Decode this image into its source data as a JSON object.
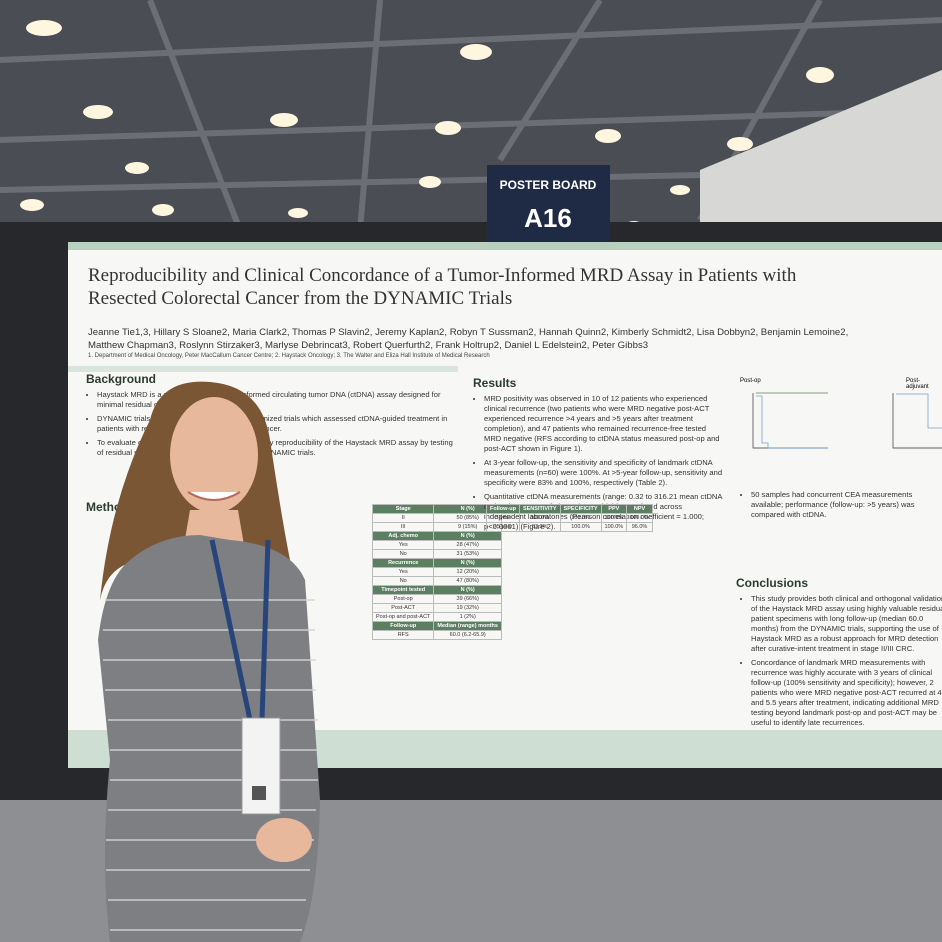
{
  "sign": {
    "label": "POSTER BOARD",
    "board": "A16"
  },
  "poster": {
    "title_lines": [
      "Reproducibility and Clinical Concordance of a Tumor-Informed MRD Assay in Patients with",
      "Resected Colorectal Cancer from the DYNAMIC Trials"
    ],
    "author_lines": [
      "Jeanne Tie1,3, Hillary S Sloane2, Maria Clark2, Thomas P Slavin2, Jeremy Kaplan2, Robyn T Sussman2, Hannah Quinn2, Kimberly Schmidt2, Lisa Dobbyn2, Benjamin Lemoine2,",
      "Matthew Chapman3, Roslynn Stirzaker3, Marlyse Debrincat3, Robert Querfurth2, Frank Holtrup2, Daniel L Edelstein2, Peter Gibbs3"
    ],
    "affiliations": "1. Department of Medical Oncology, Peter MacCallum Cancer Centre; 2. Haystack Oncology; 3. The Walter and Eliza Hall Institute of Medical Research",
    "background_heading": "Background",
    "background_items": [
      "Haystack MRD is a next-generation tumor-informed circulating tumor DNA (ctDNA) assay designed for minimal residual disease (MRD) detection.",
      "DYNAMIC trials were pivotal interventional randomized trials which assessed ctDNA-guided treatment in patients with resected stage II and III colorectal cancer.",
      "To evaluate clinical performance and inter-laboratory reproducibility of the Haystack MRD assay by testing of residual samples from patients enrolled in the DYNAMIC trials."
    ],
    "methods_heading": "Methods",
    "results_heading": "Results",
    "results_items": [
      "MRD positivity was observed in 10 of 12 patients who experienced clinical recurrence (two patients who were MRD negative post-ACT experienced recurrence >4 years and >5 years after treatment completion), and 47 patients who remained recurrence-free tested MRD negative (RFS according to ctDNA status measured post-op and post-ACT shown in Figure 1).",
      "At 3-year follow-up, the sensitivity and specificity of landmark ctDNA measurements (n=60) were 100%. At >5-year follow-up, sensitivity and specificity were 83% and 100%, respectively (Table 2).",
      "Quantitative ctDNA measurements (range: 0.32 to 316.21 mean ctDNA molecules per mL of plasma) were highly correlated across independent laboratories (Pearson correlation coefficient = 1.000; p<0.0001) (Figure 2)."
    ],
    "table1": [
      [
        "Stage",
        "N (%)"
      ],
      [
        "II",
        "50 (85%)"
      ],
      [
        "III",
        "9 (15%)"
      ],
      [
        "Adj. chemo",
        "N (%)"
      ],
      [
        "Yes",
        "28 (47%)"
      ],
      [
        "No",
        "31 (53%)"
      ],
      [
        "Recurrence",
        "N (%)"
      ],
      [
        "Yes",
        "12 (20%)"
      ],
      [
        "No",
        "47 (80%)"
      ],
      [
        "Timepoint tested",
        "N (%)"
      ],
      [
        "Post-op",
        "39 (66%)"
      ],
      [
        "Post-ACT",
        "19 (32%)"
      ],
      [
        "Post-op and post-ACT",
        "1 (2%)"
      ],
      [
        "Follow-up",
        "Median (range) months"
      ],
      [
        "RFS",
        "60.0 (6.2-65.9)"
      ]
    ],
    "table2": [
      [
        "Follow-up",
        "SENSITIVITY",
        "SPECIFICITY",
        "PPV",
        "NPV"
      ],
      [
        "3-year",
        "100.0%",
        "100.0%",
        "100.0%",
        "100.0%"
      ],
      [
        ">5-year",
        "83.3%",
        "100.0%",
        "100.0%",
        "96.0%"
      ]
    ],
    "fig1_titles": [
      "Post-op",
      "Post-adjuvant"
    ],
    "cea_text": "50 samples had concurrent CEA measurements available; performance (follow-up: >5 years) was compared with ctDNA.",
    "conclusions_heading": "Conclusions",
    "conclusions_items": [
      "This study provides both clinical and orthogonal validation of the Haystack MRD assay using highly valuable residual patient specimens with long follow-up (median 60.0 months) from the DYNAMIC trials, supporting the use of Haystack MRD as a robust approach for MRD detection after curative-intent treatment in stage II/III CRC.",
      "Concordance of landmark MRD measurements with recurrence was highly accurate with 3 years of clinical follow-up (100% sensitivity and specificity); however, 2 patients who were MRD negative post-ACT recurred at 4 and 5.5 years after treatment, indicating additional MRD testing beyond landmark post-op and post-ACT may be useful to identify late recurrences."
    ]
  }
}
